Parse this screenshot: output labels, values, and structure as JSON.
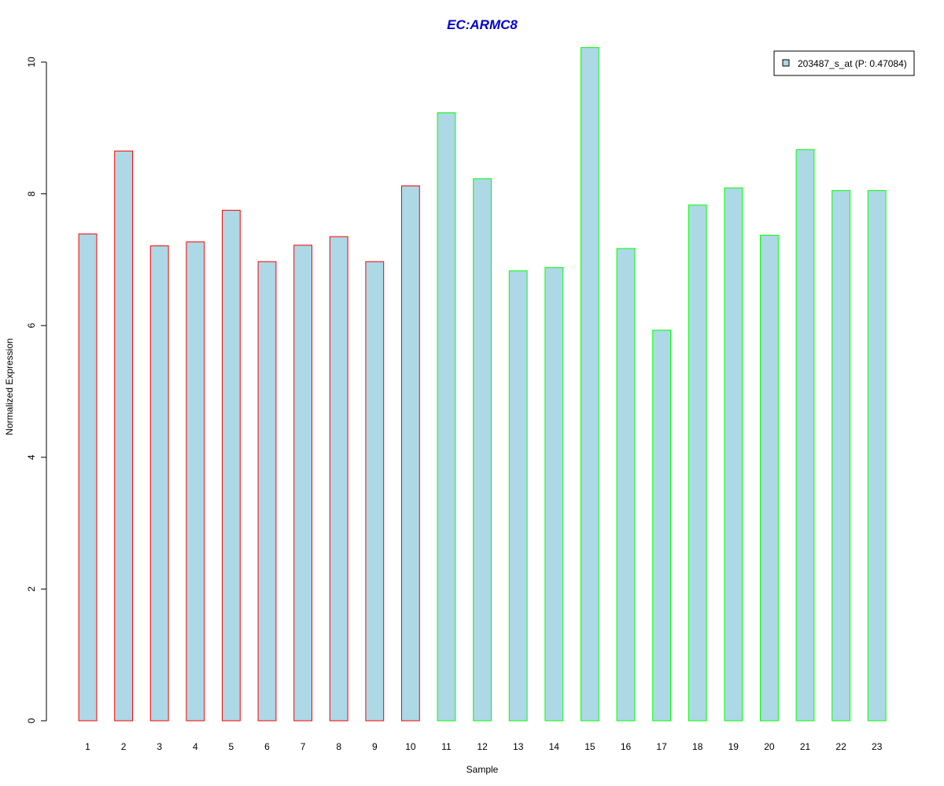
{
  "chart_data": {
    "type": "bar",
    "title": "EC:ARMC8",
    "xlabel": "Sample",
    "ylabel": "Normalized Expression",
    "ylim": [
      0,
      10
    ],
    "yticks": [
      "0",
      "2",
      "4",
      "6",
      "8",
      "10"
    ],
    "categories": [
      "1",
      "2",
      "3",
      "4",
      "5",
      "6",
      "7",
      "8",
      "9",
      "10",
      "11",
      "12",
      "13",
      "14",
      "15",
      "16",
      "17",
      "18",
      "19",
      "20",
      "21",
      "22",
      "23"
    ],
    "series": [
      {
        "name": "203487_s_at (P: 0.47084)",
        "values": [
          7.39,
          8.65,
          7.21,
          7.27,
          7.75,
          6.97,
          7.22,
          7.35,
          6.97,
          8.12,
          9.23,
          8.23,
          6.83,
          6.88,
          10.22,
          7.17,
          5.93,
          7.83,
          8.09,
          7.37,
          8.67,
          8.05,
          8.05
        ]
      }
    ],
    "group_colors": [
      "#ff0000",
      "#ff0000",
      "#ff0000",
      "#ff0000",
      "#ff0000",
      "#ff0000",
      "#ff0000",
      "#ff0000",
      "#ff0000",
      "#ff0000",
      "#00ff00",
      "#00ff00",
      "#00ff00",
      "#00ff00",
      "#00ff00",
      "#00ff00",
      "#00ff00",
      "#00ff00",
      "#00ff00",
      "#00ff00",
      "#00ff00",
      "#00ff00",
      "#00ff00"
    ],
    "bar_fill": "#add8e6",
    "title_color": "#0000cc",
    "legend_position": "top-right",
    "grid": false
  }
}
